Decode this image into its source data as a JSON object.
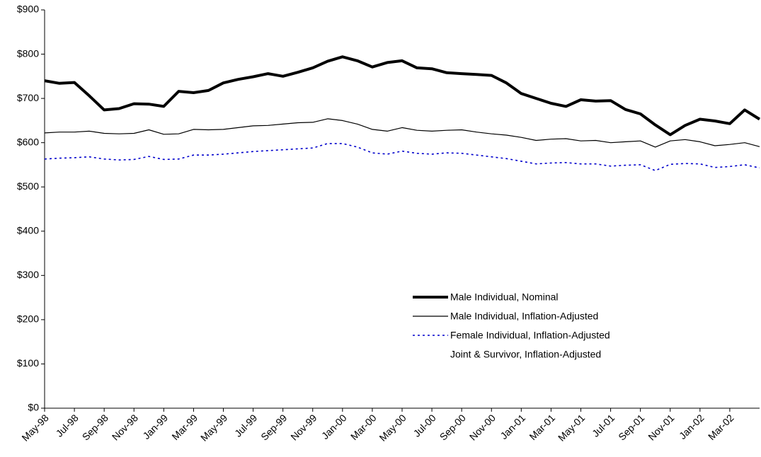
{
  "chart_data": {
    "type": "line",
    "categories": [
      "May-98",
      null,
      "Jul-98",
      null,
      "Sep-98",
      null,
      "Nov-98",
      null,
      "Jan-99",
      null,
      "Mar-99",
      null,
      "May-99",
      null,
      "Jul-99",
      null,
      "Sep-99",
      null,
      "Nov-99",
      null,
      "Jan-00",
      null,
      "Mar-00",
      null,
      "May-00",
      null,
      "Jul-00",
      null,
      "Sep-00",
      null,
      "Nov-00",
      null,
      "Jan-01",
      null,
      "Mar-01",
      null,
      "May-01",
      null,
      "Jul-01",
      null,
      "Sep-01",
      null,
      "Nov-01",
      null,
      "Jan-02",
      null,
      "Mar-02",
      null,
      null
    ],
    "series": [
      {
        "name": "Male Individual, Nominal",
        "color": "#000000",
        "style": "bold",
        "values": [
          740,
          734,
          736,
          706,
          674,
          677,
          688,
          687,
          682,
          716,
          713,
          718,
          735,
          743,
          749,
          756,
          750,
          759,
          769,
          784,
          794,
          785,
          771,
          781,
          785,
          769,
          767,
          758,
          756,
          754,
          752,
          735,
          711,
          700,
          689,
          682,
          697,
          694,
          695,
          675,
          665,
          640,
          618,
          639,
          653,
          649,
          643,
          674,
          653
        ]
      },
      {
        "name": "Male Individual, Inflation-Adjusted",
        "color": "#000000",
        "style": "solid",
        "values": [
          622,
          624,
          624,
          626,
          621,
          620,
          621,
          629,
          619,
          620,
          630,
          629,
          630,
          634,
          638,
          639,
          642,
          645,
          646,
          654,
          650,
          642,
          630,
          626,
          634,
          628,
          626,
          628,
          629,
          624,
          620,
          617,
          612,
          605,
          608,
          609,
          604,
          605,
          600,
          602,
          604,
          590,
          604,
          607,
          602,
          593,
          596,
          600,
          591
        ]
      },
      {
        "name": "Female Individual, Inflation-Adjusted",
        "color": "#0000cc",
        "style": "dotted",
        "values": [
          563,
          565,
          566,
          568,
          563,
          561,
          562,
          569,
          562,
          563,
          572,
          572,
          574,
          577,
          580,
          582,
          584,
          586,
          588,
          598,
          598,
          590,
          577,
          574,
          581,
          576,
          574,
          577,
          576,
          572,
          568,
          564,
          558,
          552,
          554,
          555,
          552,
          552,
          547,
          549,
          550,
          537,
          551,
          553,
          552,
          544,
          546,
          550,
          543
        ]
      },
      {
        "name": "Joint & Survivor, Inflation-Adjusted",
        "color": "#ffffff",
        "style": "solid",
        "values": [
          null,
          null,
          null,
          null,
          null,
          null,
          null,
          null,
          null,
          null,
          null,
          null,
          null,
          null,
          null,
          null,
          null,
          null,
          null,
          null,
          null,
          null,
          null,
          null,
          null,
          null,
          null,
          null,
          null,
          null,
          null,
          null,
          null,
          null,
          null,
          null,
          null,
          null,
          null,
          null,
          null,
          null,
          null,
          null,
          null,
          null,
          null,
          null,
          null
        ]
      }
    ],
    "ylim": [
      0,
      900
    ],
    "yticks": [
      {
        "value": 0,
        "label": "$0"
      },
      {
        "value": 100,
        "label": "$100"
      },
      {
        "value": 200,
        "label": "$200"
      },
      {
        "value": 300,
        "label": "$300"
      },
      {
        "value": 400,
        "label": "$400"
      },
      {
        "value": 500,
        "label": "$500"
      },
      {
        "value": 600,
        "label": "$600"
      },
      {
        "value": 700,
        "label": "$700"
      },
      {
        "value": 800,
        "label": "$800"
      },
      {
        "value": 900,
        "label": "$900"
      }
    ],
    "legend": "bottom-center"
  }
}
